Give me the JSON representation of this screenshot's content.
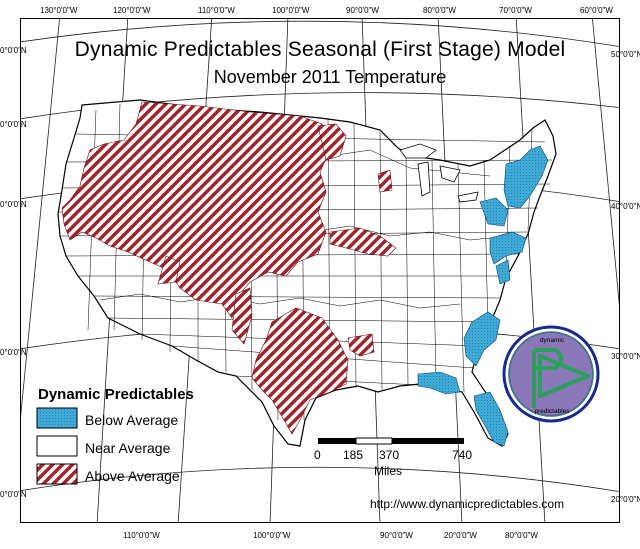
{
  "title": "Dynamic Predictables Seasonal (First Stage) Model",
  "subtitle": "November 2011 Temperature",
  "graticule": {
    "top_labels": [
      "130°0'0\"W",
      "120°0'0\"W",
      "110°0'0\"W",
      "100°0'0\"W",
      "90°0'0\"W",
      "80°0'0\"W",
      "70°0'0\"W",
      "60°0'0\"W"
    ],
    "bottom_labels": [
      "110°0'0\"W",
      "100°0'0\"W",
      "90°0'0\"W",
      "20°0'0\"W",
      "80°0'0\"W"
    ],
    "left_labels": [
      "0°0'0\"N",
      "0°0'0\"N",
      "0°0'0\"N",
      "0°0'0\"N",
      "0°0'0\"N"
    ],
    "right_labels": [
      "50°0'0\"N",
      "40°0'0\"N",
      "30°0'0\"N",
      "20°0'0\"N"
    ]
  },
  "legend": {
    "title": "Dynamic Predictables",
    "items": [
      {
        "label": "Below Average",
        "color": "#3fa9d8",
        "pattern": "dots"
      },
      {
        "label": "Near Average",
        "color": "#ffffff",
        "pattern": "none"
      },
      {
        "label": "Above Average",
        "color": "#a0242c",
        "pattern": "diagonal-stripes"
      }
    ]
  },
  "scale_bar": {
    "ticks": [
      "0",
      "185",
      "370",
      "740"
    ],
    "unit": "Miles"
  },
  "logo": {
    "top_text": "dynamic",
    "bottom_text": "predictables",
    "icon": "p-play-triangle-logo"
  },
  "footer_url": "http://www.dynamicpredictables.com",
  "colors": {
    "below": "#3fa9d8",
    "above": "#a0242c",
    "logo_outer": "#1a2a8a",
    "logo_inner": "#8a78b8",
    "logo_mark": "#2aa05a"
  }
}
